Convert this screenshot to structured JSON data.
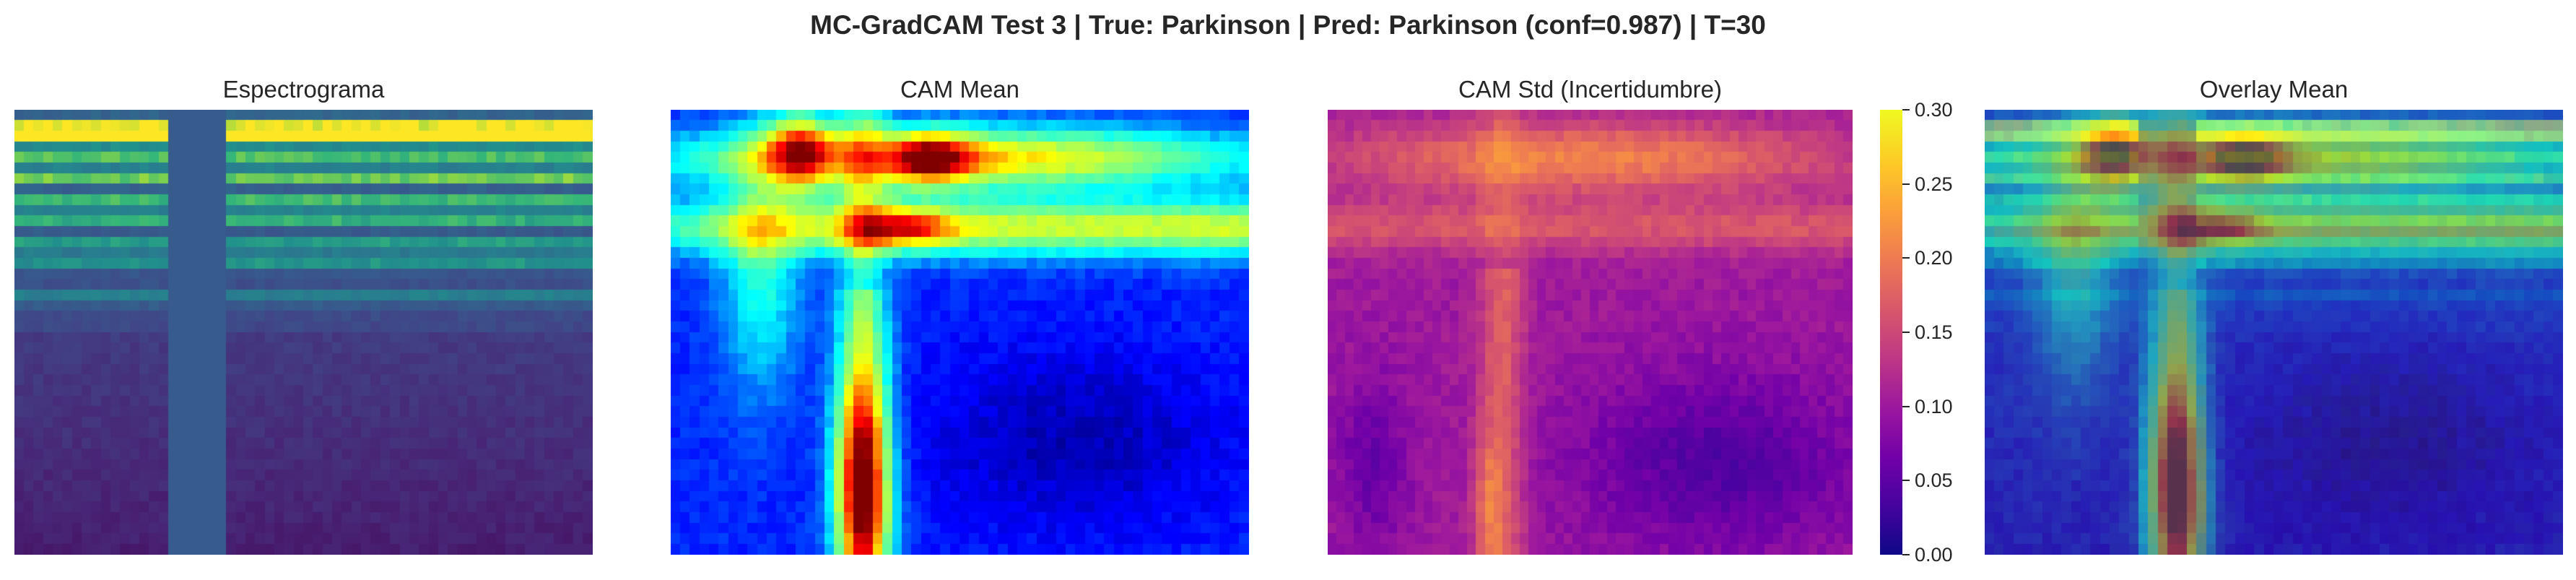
{
  "figure": {
    "suptitle": "MC-GradCAM Test 3 | True: Parkinson | Pred: Parkinson (conf=0.987) | T=30"
  },
  "panels": [
    {
      "title": "Espectrograma"
    },
    {
      "title": "CAM Mean"
    },
    {
      "title": "CAM Std (Incertidumbre)"
    },
    {
      "title": "Overlay Mean"
    }
  ],
  "colorbar": {
    "ticks": [
      "0.00",
      "0.05",
      "0.10",
      "0.15",
      "0.20",
      "0.25",
      "0.30"
    ],
    "colormap": "plasma"
  },
  "chart_data": [
    {
      "type": "heatmap",
      "title": "Espectrograma",
      "colormap": "viridis",
      "axes": "off"
    },
    {
      "type": "heatmap",
      "title": "CAM Mean",
      "colormap": "jet",
      "axes": "off"
    },
    {
      "type": "heatmap",
      "title": "CAM Std (Incertidumbre)",
      "colormap": "plasma",
      "axes": "off",
      "colorbar": {
        "range": [
          0.0,
          0.3
        ],
        "ticks": [
          0.0,
          0.05,
          0.1,
          0.15,
          0.2,
          0.25,
          0.3
        ]
      }
    },
    {
      "type": "heatmap",
      "title": "Overlay Mean",
      "colormap": "jet",
      "axes": "off"
    }
  ]
}
